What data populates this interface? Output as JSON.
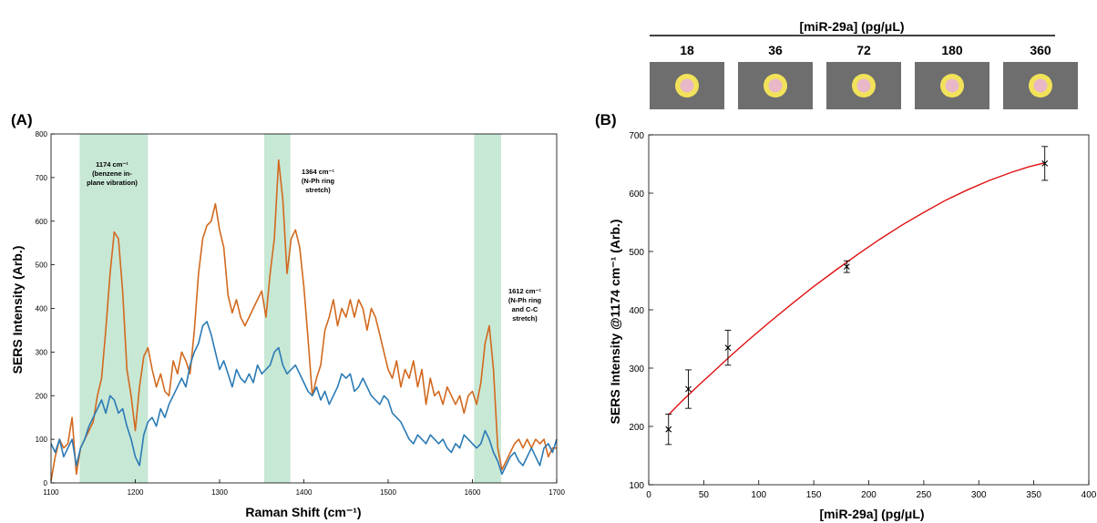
{
  "panel_a": {
    "label": "(A)",
    "band_annotations": [
      {
        "lines": [
          "1174 cm⁻¹",
          "(benzene in-",
          "plane vibration)"
        ]
      },
      {
        "lines": [
          "1364 cm⁻¹",
          "(N-Ph ring",
          "stretch)"
        ]
      },
      {
        "lines": [
          "1612 cm⁻¹",
          "(N-Ph ring",
          "and C-C",
          "stretch)"
        ]
      }
    ]
  },
  "panel_b": {
    "label": "(B)",
    "concentration_header": "[miR-29a] (pg/μL)",
    "well_concentrations": [
      "18",
      "36",
      "72",
      "180",
      "360"
    ]
  },
  "colors": {
    "orange_series": "#d2691e",
    "blue_series": "#2a7ab5",
    "highlight_band": "#b5e0c8",
    "fit_curve": "#e01010",
    "well_background": "#6e6e6e",
    "well_ring": "#f2e25a",
    "well_center": "#e8b8c8"
  },
  "chart_data": [
    {
      "type": "line",
      "xlabel": "Raman Shift (cm⁻¹)",
      "ylabel": "SERS Intensity (Arb.)",
      "xlim": [
        1100,
        1700
      ],
      "ylim": [
        0,
        800
      ],
      "xticks": [
        1100,
        1200,
        1300,
        1400,
        1500,
        1600,
        1700
      ],
      "yticks": [
        0,
        100,
        200,
        300,
        400,
        500,
        600,
        700,
        800
      ],
      "grid": false,
      "highlight_bands": [
        [
          1134,
          1215
        ],
        [
          1353,
          1384
        ],
        [
          1602,
          1634
        ]
      ],
      "series": [
        {
          "color": "orange",
          "x": [
            1100,
            1105,
            1110,
            1115,
            1120,
            1125,
            1130,
            1135,
            1140,
            1145,
            1150,
            1155,
            1160,
            1165,
            1170,
            1175,
            1180,
            1185,
            1190,
            1195,
            1200,
            1205,
            1210,
            1215,
            1220,
            1225,
            1230,
            1235,
            1240,
            1245,
            1250,
            1255,
            1260,
            1265,
            1270,
            1275,
            1280,
            1285,
            1290,
            1295,
            1300,
            1305,
            1310,
            1315,
            1320,
            1325,
            1330,
            1335,
            1340,
            1345,
            1350,
            1355,
            1360,
            1365,
            1370,
            1375,
            1380,
            1385,
            1390,
            1395,
            1400,
            1405,
            1410,
            1415,
            1420,
            1425,
            1430,
            1435,
            1440,
            1445,
            1450,
            1455,
            1460,
            1465,
            1470,
            1475,
            1480,
            1485,
            1490,
            1495,
            1500,
            1505,
            1510,
            1515,
            1520,
            1525,
            1530,
            1535,
            1540,
            1545,
            1550,
            1555,
            1560,
            1565,
            1570,
            1575,
            1580,
            1585,
            1590,
            1595,
            1600,
            1605,
            1610,
            1615,
            1620,
            1625,
            1630,
            1635,
            1640,
            1645,
            1650,
            1655,
            1660,
            1665,
            1670,
            1675,
            1680,
            1685,
            1690,
            1695,
            1700
          ],
          "y": [
            5,
            60,
            100,
            80,
            90,
            150,
            20,
            80,
            100,
            120,
            140,
            200,
            240,
            350,
            480,
            575,
            560,
            440,
            260,
            200,
            120,
            220,
            290,
            310,
            260,
            220,
            250,
            210,
            200,
            280,
            250,
            300,
            280,
            250,
            350,
            480,
            560,
            590,
            600,
            640,
            580,
            540,
            430,
            390,
            420,
            380,
            360,
            380,
            400,
            420,
            440,
            380,
            480,
            560,
            740,
            650,
            480,
            560,
            580,
            540,
            450,
            330,
            200,
            240,
            270,
            350,
            380,
            420,
            360,
            400,
            380,
            420,
            380,
            420,
            400,
            350,
            400,
            380,
            340,
            300,
            260,
            240,
            280,
            220,
            260,
            240,
            280,
            220,
            260,
            180,
            240,
            200,
            210,
            180,
            220,
            200,
            180,
            200,
            160,
            200,
            210,
            180,
            230,
            320,
            360,
            260,
            80,
            30,
            50,
            70,
            90,
            100,
            80,
            100,
            80,
            100,
            90,
            100,
            60,
            80,
            80
          ]
        },
        {
          "color": "blue",
          "x": [
            1100,
            1105,
            1110,
            1115,
            1120,
            1125,
            1130,
            1135,
            1140,
            1145,
            1150,
            1155,
            1160,
            1165,
            1170,
            1175,
            1180,
            1185,
            1190,
            1195,
            1200,
            1205,
            1210,
            1215,
            1220,
            1225,
            1230,
            1235,
            1240,
            1245,
            1250,
            1255,
            1260,
            1265,
            1270,
            1275,
            1280,
            1285,
            1290,
            1295,
            1300,
            1305,
            1310,
            1315,
            1320,
            1325,
            1330,
            1335,
            1340,
            1345,
            1350,
            1355,
            1360,
            1365,
            1370,
            1375,
            1380,
            1385,
            1390,
            1395,
            1400,
            1405,
            1410,
            1415,
            1420,
            1425,
            1430,
            1435,
            1440,
            1445,
            1450,
            1455,
            1460,
            1465,
            1470,
            1475,
            1480,
            1485,
            1490,
            1495,
            1500,
            1505,
            1510,
            1515,
            1520,
            1525,
            1530,
            1535,
            1540,
            1545,
            1550,
            1555,
            1560,
            1565,
            1570,
            1575,
            1580,
            1585,
            1590,
            1595,
            1600,
            1605,
            1610,
            1615,
            1620,
            1625,
            1630,
            1635,
            1640,
            1645,
            1650,
            1655,
            1660,
            1665,
            1670,
            1675,
            1680,
            1685,
            1690,
            1695,
            1700
          ],
          "y": [
            90,
            70,
            100,
            60,
            80,
            100,
            40,
            80,
            100,
            130,
            150,
            170,
            190,
            160,
            200,
            190,
            160,
            170,
            130,
            100,
            60,
            40,
            110,
            140,
            150,
            130,
            170,
            150,
            180,
            200,
            220,
            240,
            220,
            270,
            300,
            320,
            360,
            370,
            340,
            300,
            260,
            280,
            250,
            220,
            260,
            240,
            230,
            250,
            230,
            270,
            250,
            260,
            270,
            300,
            310,
            270,
            250,
            260,
            270,
            250,
            230,
            210,
            200,
            220,
            190,
            210,
            180,
            200,
            220,
            250,
            240,
            250,
            210,
            220,
            240,
            220,
            200,
            190,
            180,
            200,
            190,
            160,
            150,
            140,
            120,
            100,
            90,
            110,
            100,
            90,
            110,
            100,
            90,
            100,
            80,
            70,
            90,
            80,
            110,
            100,
            90,
            80,
            90,
            120,
            100,
            70,
            50,
            20,
            40,
            60,
            70,
            50,
            40,
            60,
            80,
            60,
            40,
            80,
            90,
            70,
            100
          ]
        }
      ]
    },
    {
      "type": "scatter",
      "xlabel": "[miR-29a] (pg/μL)",
      "ylabel": "SERS Intensity @1174 cm⁻¹ (Arb.)",
      "xlim": [
        0,
        400
      ],
      "ylim": [
        100,
        700
      ],
      "xticks": [
        0,
        50,
        100,
        150,
        200,
        250,
        300,
        350,
        400
      ],
      "yticks": [
        100,
        200,
        300,
        400,
        500,
        600,
        700
      ],
      "grid": false,
      "points": [
        {
          "x": 18,
          "y": 195,
          "err": 26
        },
        {
          "x": 36,
          "y": 264,
          "err": 33
        },
        {
          "x": 72,
          "y": 335,
          "err": 30
        },
        {
          "x": 180,
          "y": 474,
          "err": 10
        },
        {
          "x": 360,
          "y": 651,
          "err": 29
        }
      ],
      "fit_curve": {
        "x": [
          18,
          30,
          45,
          60,
          75,
          90,
          110,
          130,
          150,
          170,
          190,
          210,
          230,
          250,
          270,
          290,
          310,
          330,
          345,
          360
        ],
        "y": [
          220,
          243,
          270,
          296,
          322,
          347,
          379,
          410,
          440,
          468,
          495,
          521,
          545,
          567,
          588,
          606,
          622,
          636,
          645,
          652
        ]
      }
    }
  ]
}
